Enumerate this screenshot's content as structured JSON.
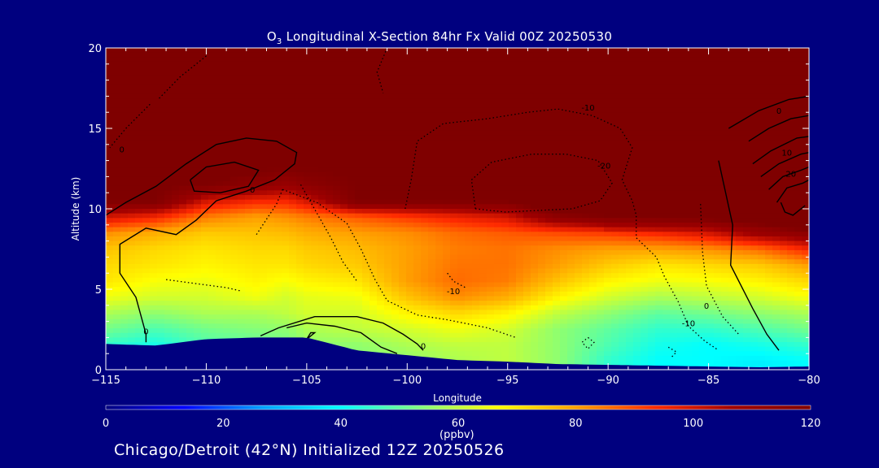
{
  "title": {
    "species": "O",
    "species_sub": "3",
    "rest": " Longitudinal X-Section 84hr  Fx Valid 00Z 20250530"
  },
  "footer": "Chicago/Detroit (42°N) Initialized 12Z 20250526",
  "colorbar": {
    "unit": "(ppbv)",
    "ticks": [
      0,
      20,
      40,
      60,
      80,
      100,
      120
    ],
    "colormap": [
      "#00007f",
      "#0000ff",
      "#00a0ff",
      "#00ffff",
      "#7fff7f",
      "#ffff00",
      "#ff9f00",
      "#ff2a00",
      "#a00000",
      "#7f0000"
    ]
  },
  "chart_data": {
    "type": "heatmap",
    "title": "O3 Longitudinal X-Section 84hr  Fx Valid 00Z 20250530",
    "xlabel": "Longitude",
    "ylabel": "Altitude (km)",
    "xlim": [
      -115,
      -80
    ],
    "ylim": [
      0,
      20
    ],
    "x_ticks": [
      -115,
      -110,
      -105,
      -100,
      -95,
      -90,
      -85,
      -80
    ],
    "y_ticks": [
      0,
      5,
      10,
      15,
      20
    ],
    "value_label": "(ppbv)",
    "value_range": [
      0,
      120
    ],
    "grid": false,
    "x": [
      -115,
      -112.5,
      -110,
      -107.5,
      -106,
      -105,
      -102.5,
      -100,
      -97.5,
      -95,
      -92.5,
      -90,
      -87.5,
      -85,
      -82.5,
      -80
    ],
    "y": [
      0.5,
      1.5,
      2.5,
      3.5,
      4.5,
      5.5,
      6.5,
      7.5,
      8.5,
      9.5,
      10.5,
      11.5,
      12.5,
      15,
      18
    ],
    "terrain_km": [
      1.6,
      1.5,
      1.9,
      2.0,
      2.0,
      2.0,
      1.2,
      0.9,
      0.6,
      0.5,
      0.35,
      0.3,
      0.25,
      0.2,
      0.15,
      0.2
    ],
    "tropopause_km": [
      10.0,
      10.2,
      10.8,
      11.2,
      12.0,
      11.8,
      10.8,
      10.2,
      9.8,
      9.6,
      8.9,
      8.7,
      8.6,
      8.5,
      8.2,
      7.8
    ],
    "lower_ppbv": [
      [
        40,
        40,
        45,
        48,
        50,
        52,
        54,
        55,
        58,
        60,
        55,
        45,
        40,
        40,
        38,
        40
      ],
      [
        45,
        42,
        48,
        50,
        52,
        55,
        55,
        58,
        60,
        60,
        55,
        48,
        42,
        40,
        42,
        45
      ],
      [
        52,
        48,
        52,
        54,
        55,
        58,
        60,
        62,
        65,
        62,
        55,
        50,
        45,
        45,
        48,
        52
      ],
      [
        58,
        55,
        58,
        58,
        60,
        62,
        62,
        68,
        72,
        68,
        60,
        55,
        50,
        52,
        55,
        58
      ],
      [
        65,
        62,
        62,
        65,
        62,
        64,
        65,
        75,
        82,
        78,
        68,
        62,
        58,
        60,
        62,
        66
      ],
      [
        70,
        66,
        65,
        68,
        66,
        68,
        70,
        80,
        86,
        84,
        75,
        68,
        65,
        66,
        68,
        72
      ],
      [
        72,
        70,
        68,
        70,
        70,
        72,
        74,
        80,
        85,
        85,
        80,
        74,
        70,
        72,
        74,
        80
      ],
      [
        75,
        72,
        70,
        72,
        72,
        74,
        76,
        80,
        84,
        85,
        82,
        80,
        80,
        82,
        86,
        95
      ],
      [
        82,
        78,
        74,
        75,
        76,
        78,
        80,
        82,
        86,
        88,
        90,
        92,
        95,
        100,
        110,
        115
      ],
      [
        100,
        95,
        84,
        80,
        82,
        84,
        88,
        92,
        96,
        100,
        115,
        120,
        120,
        120,
        120,
        120
      ],
      [
        120,
        120,
        100,
        95,
        95,
        100,
        120,
        120,
        120,
        120,
        120,
        120,
        120,
        120,
        120,
        120
      ],
      [
        120,
        120,
        120,
        115,
        110,
        115,
        120,
        120,
        120,
        120,
        120,
        120,
        120,
        120,
        120,
        120
      ],
      [
        120,
        120,
        120,
        120,
        120,
        120,
        120,
        120,
        120,
        120,
        120,
        120,
        120,
        120,
        120,
        120
      ],
      [
        120,
        120,
        120,
        120,
        120,
        120,
        120,
        120,
        120,
        120,
        120,
        120,
        120,
        120,
        120,
        120
      ],
      [
        120,
        120,
        120,
        120,
        120,
        120,
        120,
        120,
        120,
        120,
        120,
        120,
        120,
        120,
        120,
        120
      ]
    ],
    "contour_labels": [
      {
        "text": "-10",
        "lon": -91.0,
        "alt": 16.1
      },
      {
        "text": "-20",
        "lon": -90.2,
        "alt": 12.5
      },
      {
        "text": "0",
        "lon": -81.5,
        "alt": 15.9
      },
      {
        "text": "10",
        "lon": -81.1,
        "alt": 13.3
      },
      {
        "text": "20",
        "lon": -80.9,
        "alt": 12.0
      },
      {
        "text": "0",
        "lon": -107.7,
        "alt": 11.0
      },
      {
        "text": "0",
        "lon": -114.2,
        "alt": 13.5
      },
      {
        "text": "0",
        "lon": -113.0,
        "alt": 2.2
      },
      {
        "text": "-10",
        "lon": -97.7,
        "alt": 4.7
      },
      {
        "text": "-10",
        "lon": -86.0,
        "alt": 2.7
      },
      {
        "text": "0",
        "lon": -99.2,
        "alt": 1.3
      },
      {
        "text": "0",
        "lon": -85.1,
        "alt": 3.8
      }
    ]
  }
}
